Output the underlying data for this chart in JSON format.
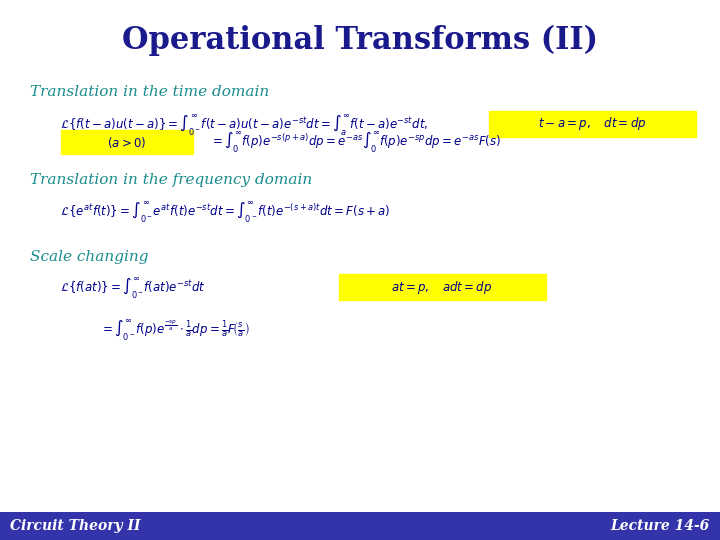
{
  "title": "Operational Transforms (II)",
  "title_color": "#1a1a8c",
  "title_fontsize": 22,
  "bg_color": "#ffffff",
  "footer_bar_color": "#3333aa",
  "footer_left": "Circuit Theory II",
  "footer_right": "Lecture 14-6",
  "footer_color": "#1a1a8c",
  "section1": "Translation in the time domain",
  "section2": "Translation in the frequency domain",
  "section3": "Scale changing",
  "section_color": "#1a8c8c",
  "highlight_yellow": "#ffff00",
  "eq_color": "#00008B",
  "eq1a": "$\\mathcal{L}\\left\\{f(t-a)u(t-a)\\right\\}=\\int_{0^-}^{\\infty}f(t-a)u(t-a)e^{-st}dt=\\int_{a}^{\\infty}f(t-a)e^{-st}dt,$",
  "eq1a_highlight": "$t-a=p,\\quad dt=dp$",
  "eq1b_left": "$(a>0)$",
  "eq1b_right": "$=\\int_{0}^{\\infty}f(p)e^{-s(p+a)}dp=e^{-as}\\int_{0}^{\\infty}f(p)e^{-sp}dp=e^{-as}F(s)$",
  "eq2": "$\\mathcal{L}\\left\\{e^{at}f(t)\\right\\}=\\int_{0^-}^{\\infty}e^{at}f(t)e^{-st}dt=\\int_{0^-}^{\\infty}f(t)e^{-(s+a)t}dt=F(s+a)$",
  "eq3a": "$\\mathcal{L}\\left\\{f(at)\\right\\}=\\int_{0^-}^{\\infty}f(at)e^{-st}dt$",
  "eq3a_highlight": "$at=p,\\quad adt=dp$",
  "eq3b": "$=\\int_{0^-}^{\\infty}f(p)e^{\\frac{-sp}{a}}\\cdot\\frac{1}{a}dp=\\frac{1}{a}F\\!\\left(\\frac{s}{a}\\right)$"
}
